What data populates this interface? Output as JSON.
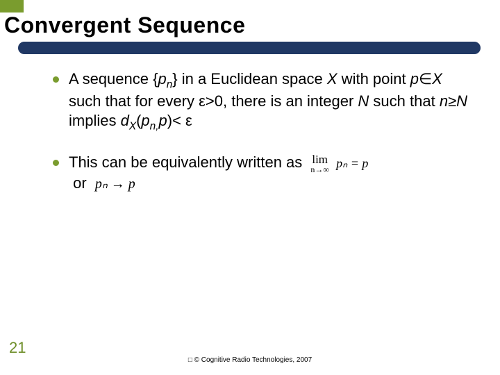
{
  "colors": {
    "accent_green": "#7a9c2e",
    "title_bar_navy": "#203864",
    "text": "#000000",
    "page_num": "#6f8f2b",
    "background": "#ffffff"
  },
  "title": "Convergent Sequence",
  "bullets": [
    {
      "pre": "A sequence {",
      "var1": "p",
      "sub1": "n",
      "mid1": "} in a Euclidean space ",
      "var2": "X",
      "mid2": " with point ",
      "var3": "p",
      "mem": "∈",
      "var4": "X",
      "mid3": " such that for every ε>0, there is an integer ",
      "var5": "N",
      "mid4": " such that ",
      "var6": "n",
      "geq": "≥",
      "var7": "N",
      "mid5": " implies ",
      "var8": "d",
      "sub2": "X",
      "open": "(",
      "var9": "p",
      "sub3": "n,",
      "var10": "p",
      "close": ")< ε"
    },
    {
      "pre": "This can be equivalently written as",
      "lim_label": "lim",
      "lim_sub": "n→∞",
      "lim_expr": "pₙ = p",
      "line2_pre": "or",
      "line2_expr": "pₙ → p"
    }
  ],
  "page_number": "21",
  "footer": "□ © Cognitive Radio Technologies, 2007"
}
